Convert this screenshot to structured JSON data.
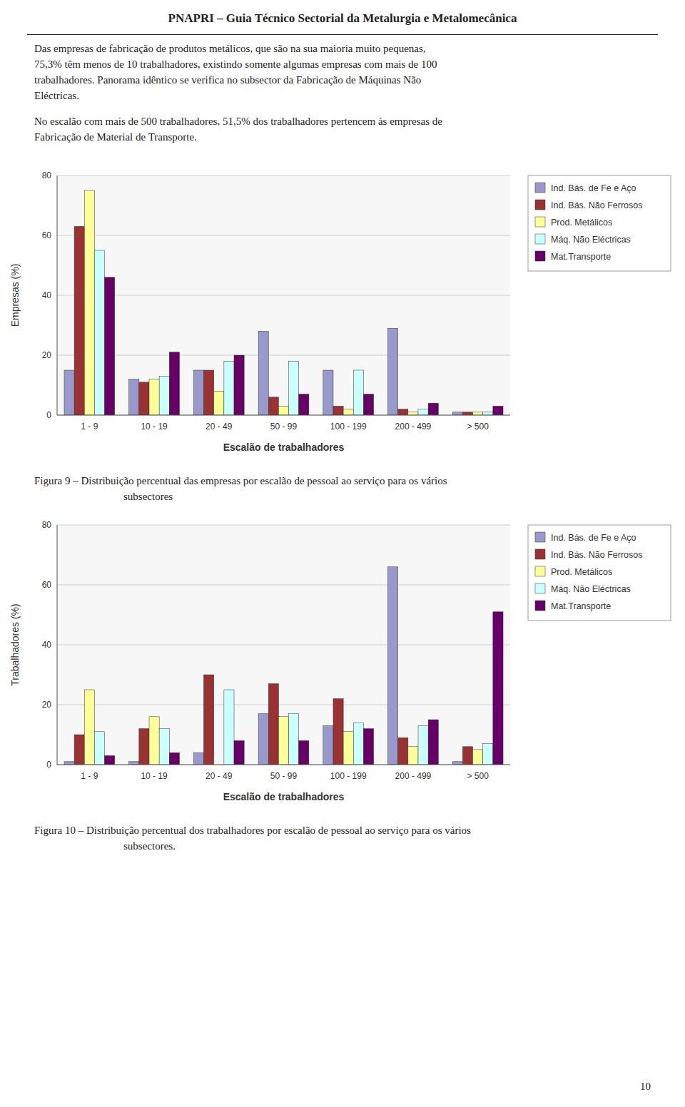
{
  "title": "PNAPRI – Guia Técnico Sectorial da Metalurgia e Metalomecânica",
  "paragraphs": [
    [
      "Das empresas de fabricação de produtos metálicos, que são na sua maioria muito pequenas,",
      "75,3% têm menos de 10 trabalhadores, existindo somente algumas empresas com mais de 100",
      "trabalhadores. Panorama idêntico se verifica no subsector da Fabricação de Máquinas Não",
      "Eléctricas."
    ],
    [
      "No escalão com mais de 500 trabalhadores, 51,5% dos trabalhadores pertencem às empresas de",
      "Fabricação de Material de Transporte."
    ]
  ],
  "captions": [
    [
      "Figura 9 – Distribuição percentual das empresas por escalão de pessoal ao serviço para os vários",
      "subsectores"
    ],
    [
      "Figura 10 – Distribuição percentual dos trabalhadores por escalão de pessoal ao serviço para os vários",
      "subsectores."
    ]
  ],
  "page_number": "10",
  "chart_data": [
    {
      "type": "bar",
      "xlabel": "Escalão de trabalhadores",
      "ylabel": "Empresas (%)",
      "categories": [
        "1 - 9",
        "10 - 19",
        "20 - 49",
        "50 - 99",
        "100 - 199",
        "200 - 499",
        "> 500"
      ],
      "series": [
        {
          "name": "Ind. Bás. de Fe e Aço",
          "color": "#9999CC",
          "values": [
            15,
            12,
            15,
            28,
            15,
            29,
            1
          ]
        },
        {
          "name": "Ind. Bás. Não Ferrosos",
          "color": "#993333",
          "values": [
            63,
            11,
            15,
            6,
            3,
            2,
            1
          ]
        },
        {
          "name": "Prod. Metálicos",
          "color": "#FFFF99",
          "values": [
            75,
            12,
            8,
            3,
            2,
            1,
            1
          ]
        },
        {
          "name": "Máq. Não Eléctricas",
          "color": "#CCFFFF",
          "values": [
            55,
            13,
            18,
            18,
            15,
            2,
            1
          ]
        },
        {
          "name": "Mat.Transporte",
          "color": "#660066",
          "values": [
            46,
            21,
            20,
            7,
            7,
            4,
            3
          ]
        }
      ],
      "ylim": [
        0,
        80
      ],
      "yticks": [
        0,
        20,
        40,
        60,
        80
      ],
      "grid": true,
      "legend": "upper right"
    },
    {
      "type": "bar",
      "xlabel": "Escalão de trabalhadores",
      "ylabel": "Trabalhadores (%)",
      "categories": [
        "1 - 9",
        "10 - 19",
        "20 - 49",
        "50 - 99",
        "100 - 199",
        "200 - 499",
        "> 500"
      ],
      "series": [
        {
          "name": "Ind. Bás. de Fe e Aço",
          "color": "#9999CC",
          "values": [
            1,
            1,
            4,
            17,
            13,
            66,
            1
          ]
        },
        {
          "name": "Ind. Bás. Não Ferrosos",
          "color": "#993333",
          "values": [
            10,
            12,
            30,
            27,
            22,
            9,
            6
          ]
        },
        {
          "name": "Prod. Metálicos",
          "color": "#FFFF99",
          "values": [
            25,
            16,
            0,
            16,
            11,
            6,
            5
          ]
        },
        {
          "name": "Máq. Não Eléctricas",
          "color": "#CCFFFF",
          "values": [
            11,
            12,
            25,
            17,
            14,
            13,
            7
          ]
        },
        {
          "name": "Mat.Transporte",
          "color": "#660066",
          "values": [
            3,
            4,
            8,
            8,
            12,
            15,
            51
          ]
        }
      ],
      "ylim": [
        0,
        80
      ],
      "yticks": [
        0,
        20,
        40,
        60,
        80
      ],
      "grid": true,
      "legend": "upper right"
    }
  ]
}
